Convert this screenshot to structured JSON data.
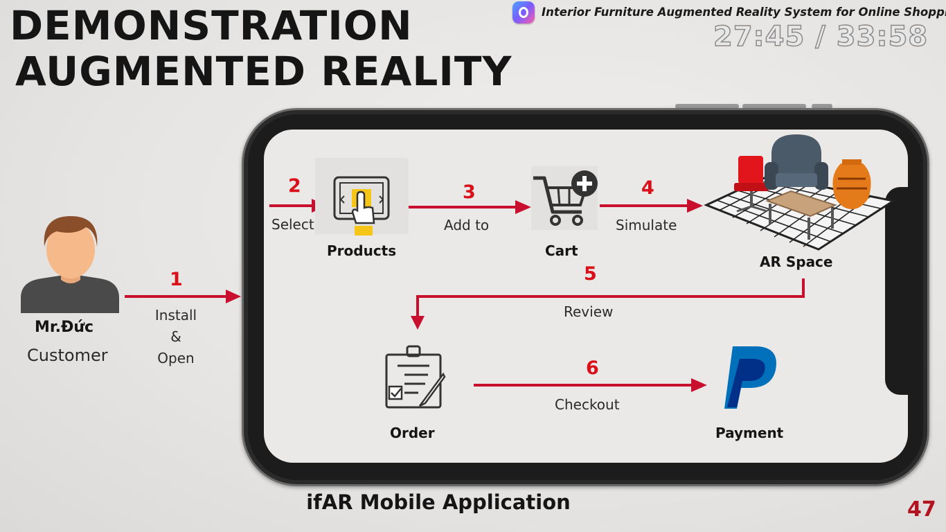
{
  "title": {
    "line1": "DEMONSTRATION",
    "line2": "AUGMENTED REALITY"
  },
  "header": {
    "text": "Interior Furniture Augmented Reality System for Online Shopping",
    "logo_icon": "app-logo-icon"
  },
  "timer": "27:45 / 33:58",
  "actor": {
    "name": "Mr.Đức",
    "role": "Customer"
  },
  "steps": [
    {
      "num": "1",
      "lines": [
        "Install",
        "&",
        "Open"
      ]
    },
    {
      "num": "2",
      "label": "Select"
    },
    {
      "num": "3",
      "label": "Add to"
    },
    {
      "num": "4",
      "label": "Simulate"
    },
    {
      "num": "5",
      "label": "Review"
    },
    {
      "num": "6",
      "label": "Checkout"
    }
  ],
  "nodes": {
    "products": "Products",
    "cart": "Cart",
    "ar_space": "AR Space",
    "order": "Order",
    "payment": "Payment"
  },
  "footer": "ifAR Mobile Application",
  "page_number": "47",
  "colors": {
    "arrow": "#c8102e",
    "number": "#d9101a",
    "accent": "#b3131f"
  }
}
